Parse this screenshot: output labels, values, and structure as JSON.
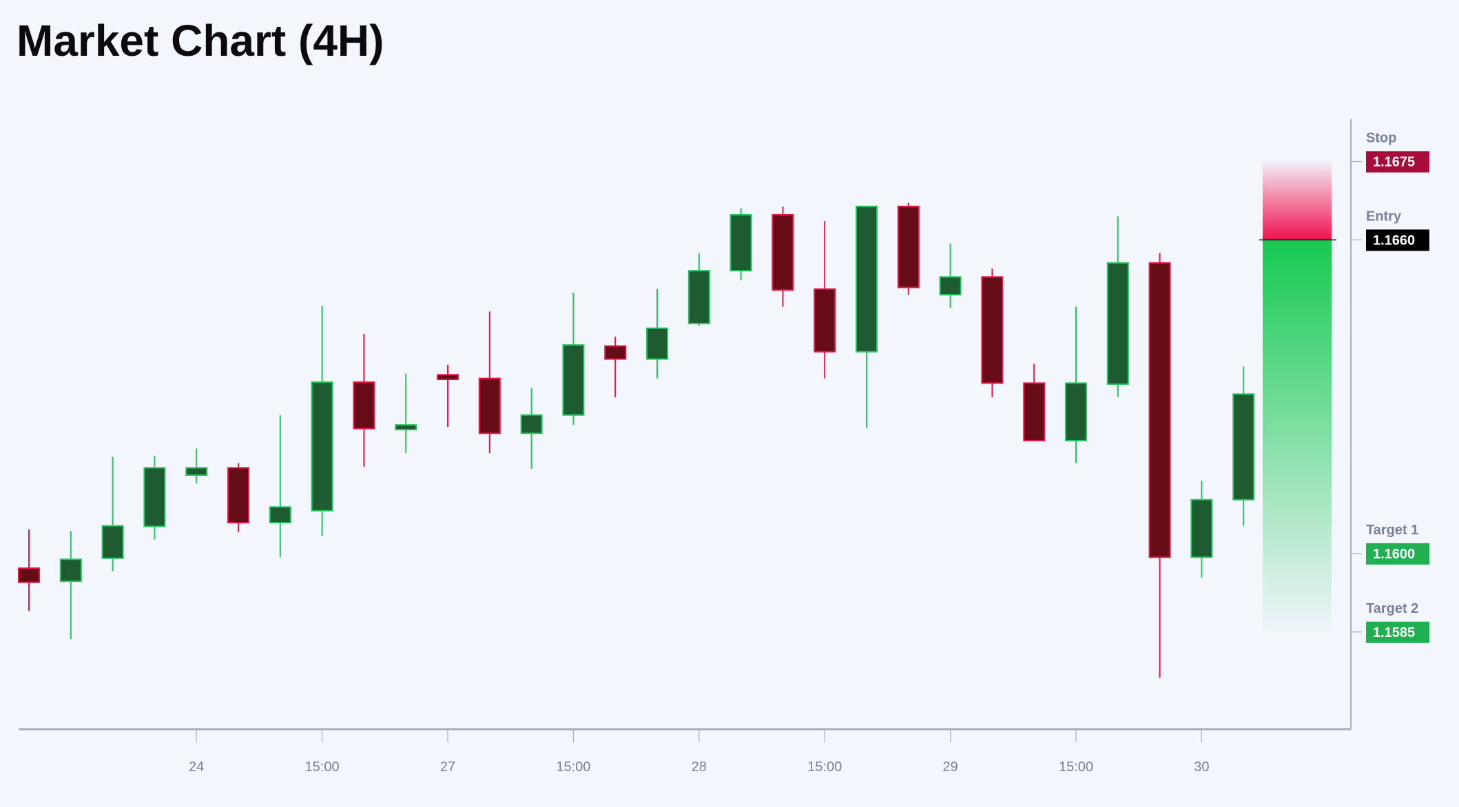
{
  "title": "Market Chart (4H)",
  "chart_data": {
    "type": "candlestick",
    "title": "Market Chart (4H)",
    "xlabel": "",
    "ylabel": "",
    "ylim": [
      1.15664,
      1.16831
    ],
    "grid": false,
    "x_ticks": [
      {
        "index": 4,
        "label": "24"
      },
      {
        "index": 7,
        "label": "15:00"
      },
      {
        "index": 10,
        "label": "27"
      },
      {
        "index": 13,
        "label": "15:00"
      },
      {
        "index": 16,
        "label": "28"
      },
      {
        "index": 19,
        "label": "15:00"
      },
      {
        "index": 22,
        "label": "29"
      },
      {
        "index": 25,
        "label": "15:00"
      },
      {
        "index": 28,
        "label": "30"
      }
    ],
    "candles": [
      {
        "o": 1.15972,
        "h": 1.16046,
        "l": 1.1589,
        "c": 1.15945
      },
      {
        "o": 1.15947,
        "h": 1.16043,
        "l": 1.15836,
        "c": 1.15989
      },
      {
        "o": 1.15991,
        "h": 1.16185,
        "l": 1.15966,
        "c": 1.16053
      },
      {
        "o": 1.16052,
        "h": 1.16187,
        "l": 1.16027,
        "c": 1.16164
      },
      {
        "o": 1.1615,
        "h": 1.16201,
        "l": 1.16134,
        "c": 1.16164
      },
      {
        "o": 1.16164,
        "h": 1.16173,
        "l": 1.16041,
        "c": 1.16059
      },
      {
        "o": 1.16059,
        "h": 1.16265,
        "l": 1.15993,
        "c": 1.16089
      },
      {
        "o": 1.16082,
        "h": 1.16474,
        "l": 1.16034,
        "c": 1.16328
      },
      {
        "o": 1.16328,
        "h": 1.1642,
        "l": 1.16166,
        "c": 1.16239
      },
      {
        "o": 1.16237,
        "h": 1.16344,
        "l": 1.16192,
        "c": 1.16246
      },
      {
        "o": 1.16342,
        "h": 1.16361,
        "l": 1.16242,
        "c": 1.16333
      },
      {
        "o": 1.16335,
        "h": 1.16463,
        "l": 1.16192,
        "c": 1.1623
      },
      {
        "o": 1.1623,
        "h": 1.16317,
        "l": 1.16162,
        "c": 1.16265
      },
      {
        "o": 1.16265,
        "h": 1.16499,
        "l": 1.16246,
        "c": 1.16399
      },
      {
        "o": 1.16397,
        "h": 1.16415,
        "l": 1.16299,
        "c": 1.16372
      },
      {
        "o": 1.16372,
        "h": 1.16506,
        "l": 1.16335,
        "c": 1.16431
      },
      {
        "o": 1.1644,
        "h": 1.16575,
        "l": 1.16436,
        "c": 1.16541
      },
      {
        "o": 1.16541,
        "h": 1.16661,
        "l": 1.16523,
        "c": 1.16648
      },
      {
        "o": 1.16648,
        "h": 1.16664,
        "l": 1.16472,
        "c": 1.16504
      },
      {
        "o": 1.16506,
        "h": 1.16636,
        "l": 1.16335,
        "c": 1.16386
      },
      {
        "o": 1.16386,
        "h": 1.16664,
        "l": 1.1624,
        "c": 1.16664
      },
      {
        "o": 1.16664,
        "h": 1.16671,
        "l": 1.16495,
        "c": 1.16509
      },
      {
        "o": 1.16495,
        "h": 1.16593,
        "l": 1.1647,
        "c": 1.16529
      },
      {
        "o": 1.16529,
        "h": 1.16545,
        "l": 1.16299,
        "c": 1.16326
      },
      {
        "o": 1.16326,
        "h": 1.16363,
        "l": 1.16216,
        "c": 1.16216
      },
      {
        "o": 1.16216,
        "h": 1.16472,
        "l": 1.16173,
        "c": 1.16326
      },
      {
        "o": 1.16324,
        "h": 1.16645,
        "l": 1.16299,
        "c": 1.16556
      },
      {
        "o": 1.16556,
        "h": 1.16575,
        "l": 1.15762,
        "c": 1.15993
      },
      {
        "o": 1.15993,
        "h": 1.16139,
        "l": 1.15954,
        "c": 1.16103
      },
      {
        "o": 1.16103,
        "h": 1.16358,
        "l": 1.16053,
        "c": 1.16305
      }
    ],
    "levels": [
      {
        "name": "Stop",
        "value": "1.1675",
        "price": 1.1675,
        "color": "#a90b3a"
      },
      {
        "name": "Entry",
        "value": "1.1660",
        "price": 1.166,
        "color": "#000000"
      },
      {
        "name": "Target 1",
        "value": "1.1600",
        "price": 1.16,
        "color": "#20b051"
      },
      {
        "name": "Target 2",
        "value": "1.1585",
        "price": 1.1585,
        "color": "#20b051"
      }
    ],
    "colors": {
      "bull_body": "#1f5b30",
      "bull_border": "#22c55e",
      "bear_body": "#650c16",
      "bear_border": "#e8174a",
      "risk_zone": "#f0124f",
      "reward_zone": "#16c950"
    }
  }
}
